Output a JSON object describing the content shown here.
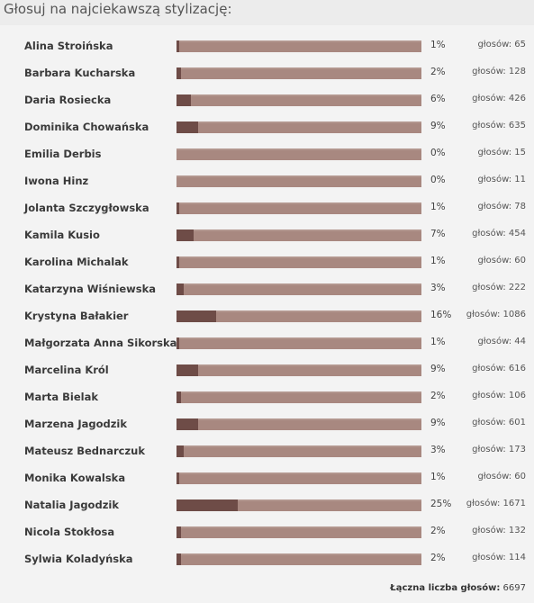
{
  "poll": {
    "title": "Głosuj na najciekawszą stylizację:",
    "votes_prefix": "głosów: ",
    "total_label": "Łączna liczba głosów:",
    "total_value": "6697",
    "colors": {
      "page_background": "#ececec",
      "panel_background": "#f3f3f3",
      "bar_track": "#a88880",
      "bar_fill": "#6e4c47"
    },
    "candidates": [
      {
        "name": "Alina Stroińska",
        "percent": "1%",
        "votes": "głosów: 65"
      },
      {
        "name": "Barbara Kucharska",
        "percent": "2%",
        "votes": "głosów: 128"
      },
      {
        "name": "Daria Rosiecka",
        "percent": "6%",
        "votes": "głosów: 426"
      },
      {
        "name": "Dominika Chowańska",
        "percent": "9%",
        "votes": "głosów: 635"
      },
      {
        "name": "Emilia Derbis",
        "percent": "0%",
        "votes": "głosów: 15"
      },
      {
        "name": "Iwona Hinz",
        "percent": "0%",
        "votes": "głosów: 11"
      },
      {
        "name": "Jolanta Szczygłowska",
        "percent": "1%",
        "votes": "głosów: 78"
      },
      {
        "name": "Kamila Kusio",
        "percent": "7%",
        "votes": "głosów: 454"
      },
      {
        "name": "Karolina Michalak",
        "percent": "1%",
        "votes": "głosów: 60"
      },
      {
        "name": "Katarzyna Wiśniewska",
        "percent": "3%",
        "votes": "głosów: 222"
      },
      {
        "name": "Krystyna Bałakier",
        "percent": "16%",
        "votes": "głosów: 1086"
      },
      {
        "name": "Małgorzata Anna Sikorska",
        "percent": "1%",
        "votes": "głosów: 44"
      },
      {
        "name": "Marcelina Król",
        "percent": "9%",
        "votes": "głosów: 616"
      },
      {
        "name": "Marta Bielak",
        "percent": "2%",
        "votes": "głosów: 106"
      },
      {
        "name": "Marzena Jagodzik",
        "percent": "9%",
        "votes": "głosów: 601"
      },
      {
        "name": "Mateusz Bednarczuk",
        "percent": "3%",
        "votes": "głosów: 173"
      },
      {
        "name": "Monika Kowalska",
        "percent": "1%",
        "votes": "głosów: 60"
      },
      {
        "name": "Natalia Jagodzik",
        "percent": "25%",
        "votes": "głosów: 1671"
      },
      {
        "name": "Nicola Stokłosa",
        "percent": "2%",
        "votes": "głosów: 132"
      },
      {
        "name": "Sylwia Koladyńska",
        "percent": "2%",
        "votes": "głosów: 114"
      }
    ]
  }
}
